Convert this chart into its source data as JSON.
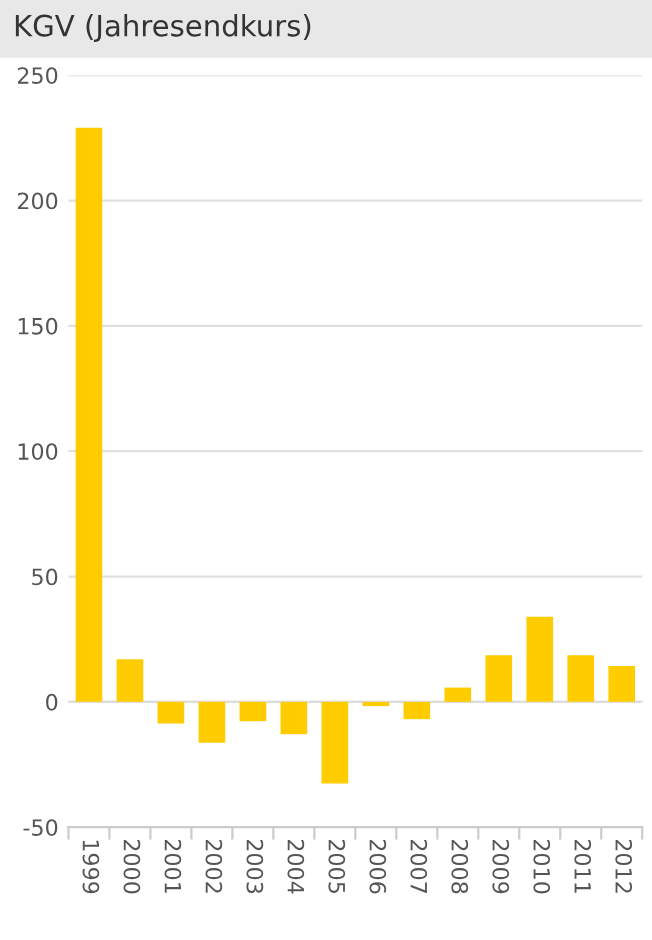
{
  "chart_data": {
    "type": "bar",
    "title": "KGV (Jahresendkurs)",
    "categories": [
      "1999",
      "2000",
      "2001",
      "2002",
      "2003",
      "2004",
      "2005",
      "2006",
      "2007",
      "2008",
      "2009",
      "2010",
      "2011",
      "2012"
    ],
    "series": [
      {
        "color": "#ffcc00",
        "values": [
          229,
          17,
          -8.6,
          -16.3,
          -7.7,
          -12.9,
          -32.6,
          -1.7,
          -6.9,
          5.7,
          18.6,
          34,
          18.6,
          14.3
        ]
      }
    ],
    "ylim": [
      -50,
      250
    ],
    "yticks": [
      -50,
      0,
      50,
      100,
      150,
      200,
      250
    ],
    "grid": "y"
  }
}
